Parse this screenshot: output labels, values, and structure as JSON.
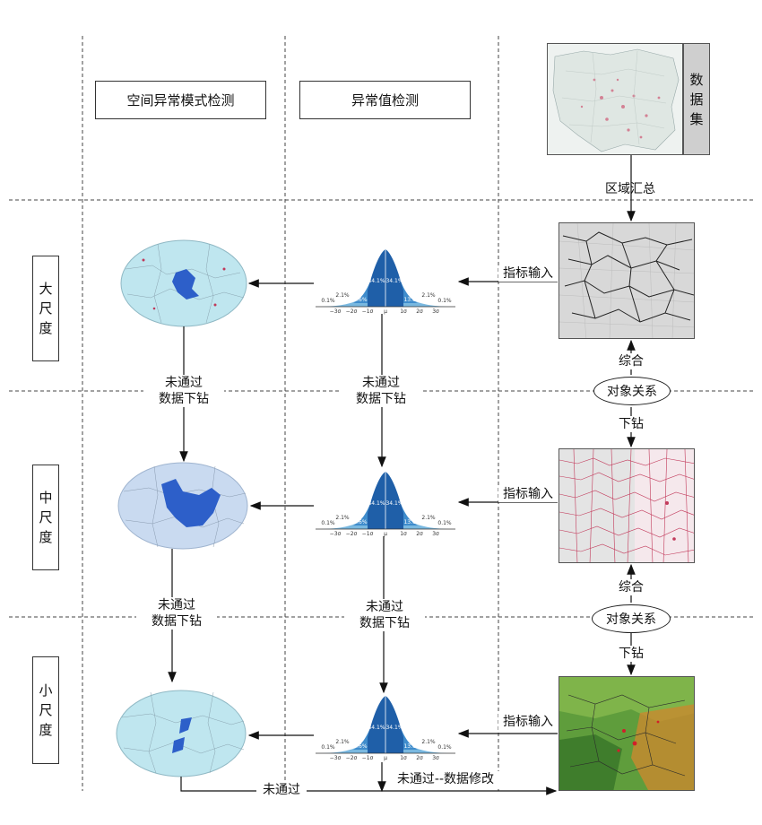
{
  "columns": {
    "spatial": "空间异常模式检测",
    "outlier": "异常值检测"
  },
  "dataset": [
    "数",
    "据",
    "集"
  ],
  "scales": {
    "large": [
      "大",
      "尺",
      "度"
    ],
    "medium": [
      "中",
      "尺",
      "度"
    ],
    "small": [
      "小",
      "尺",
      "度"
    ]
  },
  "labels": {
    "region_summary": "区域汇总",
    "indicator_input": "指标输入",
    "synthesis": "综合",
    "object_relation": "对象关系",
    "drill_down": "下钻",
    "not_passed": "未通过",
    "data_drill": "数据下钻",
    "not_passed_fix": "未通过--数据修改"
  },
  "normal_curve": {
    "center_pcts": [
      "34.1%",
      "34.1%"
    ],
    "mid_pcts": [
      "13.6%",
      "13.6%"
    ],
    "side_pcts": [
      "2.1%",
      "2.1%"
    ],
    "tail_pcts": [
      "0.1%",
      "0.1%"
    ],
    "ticks": [
      "−3σ",
      "−2σ",
      "−1σ",
      "μ",
      "1σ",
      "2σ",
      "3σ"
    ]
  },
  "colors": {
    "curve_dark": "#1f5fa8",
    "curve_mid": "#3f8ccc",
    "curve_light": "#79b8e0",
    "ellipse_fill": "#bfe6ef",
    "ellipse_mid_fill": "#c9daf0",
    "blue_region": "#2d5fc9"
  }
}
